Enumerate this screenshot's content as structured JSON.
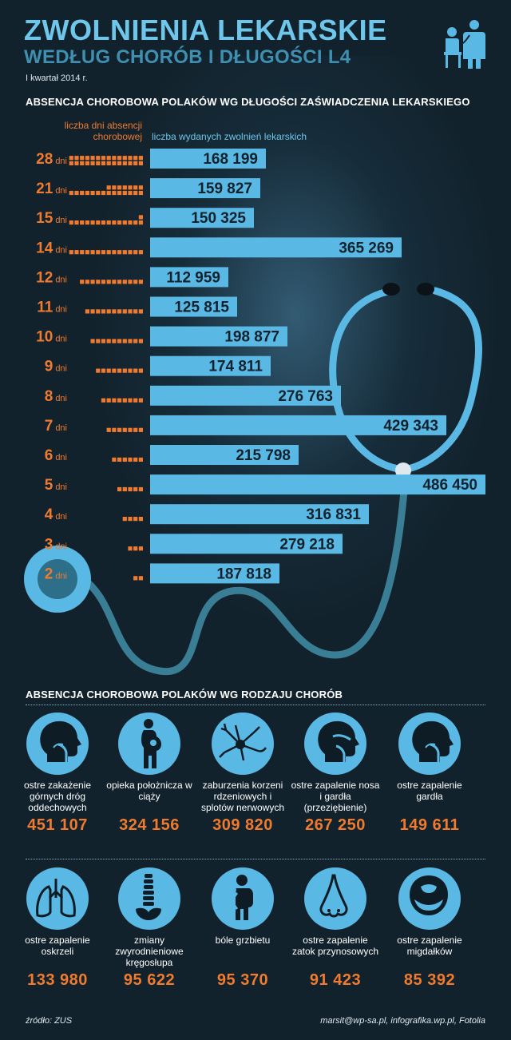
{
  "header": {
    "title_line1": "ZWOLNIENIA LEKARSKIE",
    "title_line2": "WEDŁUG CHORÓB I DŁUGOŚCI L4",
    "subtitle": "I kwartał 2014 r."
  },
  "section1_title": "ABSENCJA CHOROBOWA POLAKÓW WG DŁUGOŚCI ZAŚWIADCZENIA LEKARSKIEGO",
  "legend": {
    "days_label": "liczba dni absencji chorobowej",
    "count_label": "liczba wydanych zwolnień lekarskich"
  },
  "colors": {
    "bar": "#5ab8e4",
    "orange": "#f07a2e",
    "background": "#12222c",
    "title_light": "#6ec6ea"
  },
  "chart_data": {
    "type": "bar",
    "orientation": "horizontal",
    "title": "ABSENCJA CHOROBOWA POLAKÓW WG DŁUGOŚCI ZAŚWIADCZENIA LEKARSKIEGO",
    "day_unit": "dni",
    "categories": [
      28,
      21,
      15,
      14,
      12,
      11,
      10,
      9,
      8,
      7,
      6,
      5,
      4,
      3,
      2
    ],
    "values": [
      168199,
      159827,
      150325,
      365269,
      112959,
      125815,
      198877,
      174811,
      276763,
      429343,
      215798,
      486450,
      316831,
      279218,
      187818
    ],
    "value_labels": [
      "168 199",
      "159 827",
      "150 325",
      "365 269",
      "112 959",
      "125 815",
      "198 877",
      "174 811",
      "276 763",
      "429 343",
      "215 798",
      "486 450",
      "316 831",
      "279 218",
      "187 818"
    ],
    "xlim": [
      0,
      486450
    ]
  },
  "section2_title": "ABSENCJA CHOROBOWA POLAKÓW WG RODZAJU CHORÓB",
  "diseases": [
    {
      "label": "ostre zakażenie górnych dróg oddechowych",
      "value": "451 107",
      "icon": "head-throat-icon"
    },
    {
      "label": "opieka położnicza w ciąży",
      "value": "324 156",
      "icon": "pregnant-woman-icon"
    },
    {
      "label": "zaburzenia korzeni rdzeniowych i splotów nerwowych",
      "value": "309 820",
      "icon": "neuron-icon"
    },
    {
      "label": "ostre zapalenie nosa i gardła (przeziębienie)",
      "value": "267 250",
      "icon": "head-nose-throat-icon"
    },
    {
      "label": "ostre zapalenie gardła",
      "value": "149 611",
      "icon": "head-throat-icon"
    },
    {
      "label": "ostre zapalenie oskrzeli",
      "value": "133 980",
      "icon": "lungs-icon"
    },
    {
      "label": "zmiany zwyrodnieniowe kręgosłupa",
      "value": "95 622",
      "icon": "spine-icon"
    },
    {
      "label": "bóle grzbietu",
      "value": "95 370",
      "icon": "back-pain-icon"
    },
    {
      "label": "ostre zapalenie zatok przynosowych",
      "value": "91 423",
      "icon": "nose-icon"
    },
    {
      "label": "ostre zapalenie migdałków",
      "value": "85 392",
      "icon": "tonsils-icon"
    }
  ],
  "footer": {
    "source": "źródło: ZUS",
    "credits": "marsit@wp-sa.pl, infografika.wp.pl, Fotolia"
  }
}
